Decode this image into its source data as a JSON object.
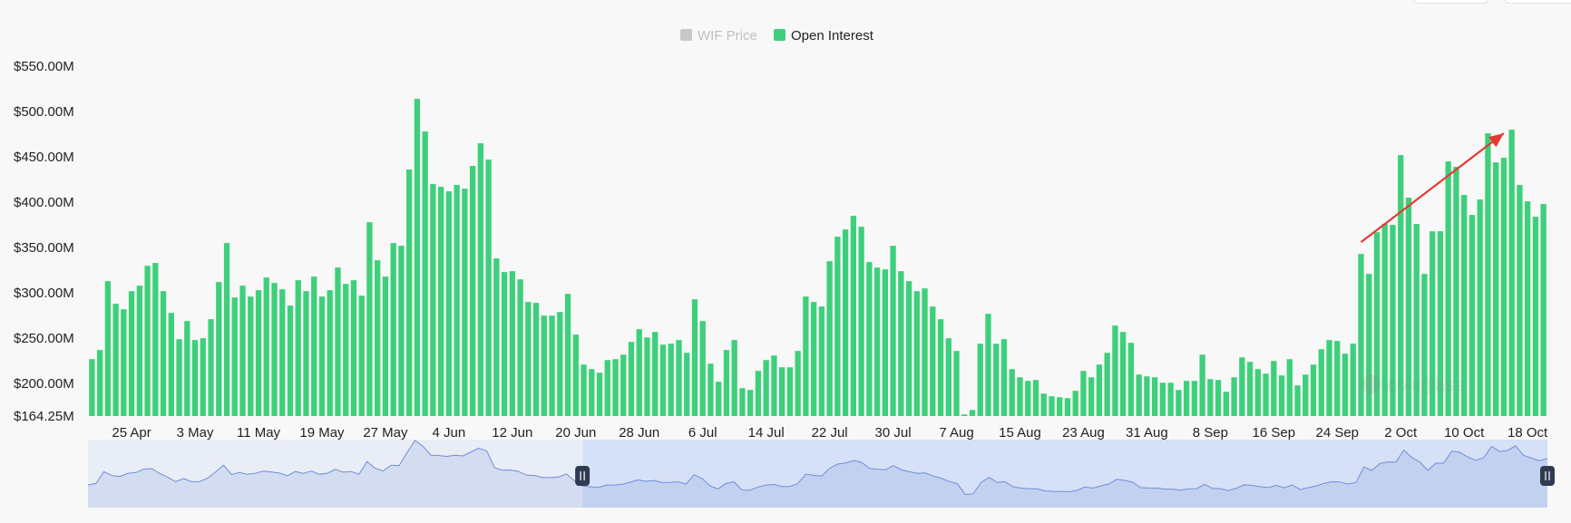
{
  "chart_data": {
    "type": "bar",
    "title": "",
    "xlabel": "",
    "ylabel": "",
    "legend": {
      "position": "top-center",
      "entries": [
        {
          "name": "WIF Price",
          "color": "#c8c8c8",
          "active": false
        },
        {
          "name": "Open Interest",
          "color": "#3ecf7a",
          "active": true
        }
      ]
    },
    "grid": false,
    "ylim": [
      164.25,
      550
    ],
    "y_unit": "$M",
    "y_ticks": [
      "$550.00M",
      "$500.00M",
      "$450.00M",
      "$400.00M",
      "$350.00M",
      "$300.00M",
      "$250.00M",
      "$200.00M",
      "$164.25M"
    ],
    "y_tick_values": [
      550,
      500,
      450,
      400,
      350,
      300,
      250,
      200,
      164.25
    ],
    "x_ticks": [
      "25 Apr",
      "3 May",
      "11 May",
      "19 May",
      "27 May",
      "4 Jun",
      "12 Jun",
      "20 Jun",
      "28 Jun",
      "6 Jul",
      "14 Jul",
      "22 Jul",
      "30 Jul",
      "7 Aug",
      "15 Aug",
      "23 Aug",
      "31 Aug",
      "8 Sep",
      "16 Sep",
      "24 Sep",
      "2 Oct",
      "10 Oct",
      "18 Oct"
    ],
    "x_tick_start_index": 5,
    "x_tick_step": 8,
    "series": [
      {
        "name": "Open Interest",
        "color": "#3ecf7a",
        "values": [
          227,
          237,
          313,
          288,
          282,
          302,
          308,
          330,
          333,
          302,
          278,
          249,
          269,
          248,
          250,
          271,
          312,
          355,
          295,
          308,
          296,
          303,
          317,
          311,
          304,
          286,
          314,
          302,
          318,
          296,
          303,
          328,
          310,
          314,
          297,
          378,
          336,
          318,
          355,
          352,
          436,
          514,
          478,
          420,
          417,
          412,
          419,
          415,
          440,
          465,
          447,
          338,
          323,
          324,
          315,
          290,
          289,
          275,
          275,
          279,
          299,
          254,
          221,
          216,
          212,
          226,
          227,
          232,
          246,
          260,
          251,
          257,
          243,
          244,
          248,
          234,
          293,
          269,
          222,
          202,
          237,
          248,
          195,
          193,
          214,
          226,
          231,
          218,
          218,
          236,
          296,
          290,
          285,
          335,
          362,
          370,
          385,
          373,
          334,
          328,
          326,
          352,
          324,
          313,
          302,
          305,
          285,
          271,
          250,
          236,
          166,
          171,
          244,
          277,
          244,
          249,
          216,
          207,
          203,
          204,
          189,
          186,
          185,
          184,
          192,
          214,
          207,
          221,
          234,
          264,
          257,
          245,
          210,
          208,
          207,
          201,
          201,
          193,
          203,
          203,
          232,
          205,
          204,
          191,
          207,
          229,
          224,
          216,
          211,
          225,
          209,
          227,
          198,
          210,
          221,
          238,
          248,
          247,
          233,
          244,
          343,
          321,
          367,
          376,
          375,
          452,
          405,
          376,
          321,
          368,
          368,
          445,
          439,
          408,
          386,
          403,
          476,
          444,
          449,
          480,
          419,
          401,
          384,
          398
        ]
      }
    ],
    "annotations": [
      {
        "type": "trend-arrow",
        "color": "#e53935",
        "from_index": 160,
        "from_value": 356,
        "to_index": 178,
        "to_value": 476
      }
    ],
    "navigator": {
      "selection_start_index": 62,
      "selection_end_index": 183,
      "fill_color": "#d6e0f7",
      "line_color": "#6f8fd8"
    }
  }
}
